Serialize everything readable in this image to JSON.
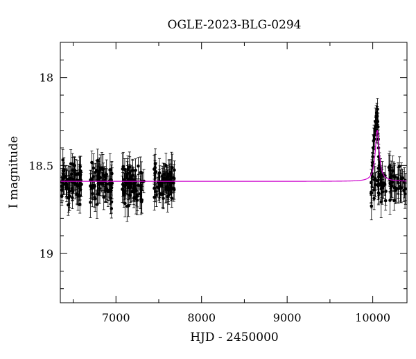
{
  "chart_data": {
    "type": "scatter",
    "title": "OGLE-2023-BLG-0294",
    "xlabel": "HJD - 2450000",
    "ylabel": "I magnitude",
    "xlim": [
      6350,
      10400
    ],
    "ylim": [
      19.28,
      17.8
    ],
    "y_inverted": true,
    "grid": false,
    "x_ticks": [
      7000,
      8000,
      9000,
      10000
    ],
    "x_tick_labels": [
      "7000",
      "8000",
      "9000",
      "10000"
    ],
    "y_ticks": [
      18,
      18.5,
      19
    ],
    "y_tick_labels": [
      "18",
      "18.5",
      "19"
    ],
    "series": [
      {
        "kind": "points_with_errorbars",
        "color": "#000000",
        "observing_seasons": [
          {
            "x_range": [
              6360,
              6600
            ],
            "mag_median": 18.6,
            "mag_spread": 0.2,
            "err": 0.07
          },
          {
            "x_range": [
              6700,
              6960
            ],
            "mag_median": 18.6,
            "mag_spread": 0.2,
            "err": 0.07
          },
          {
            "x_range": [
              7070,
              7330
            ],
            "mag_median": 18.6,
            "mag_spread": 0.2,
            "err": 0.07
          },
          {
            "x_range": [
              7440,
              7690
            ],
            "mag_median": 18.6,
            "mag_spread": 0.18,
            "err": 0.07
          },
          {
            "x_range": [
              9980,
              10390
            ],
            "mag_median": 18.6,
            "mag_spread": 0.15,
            "err": 0.07
          }
        ],
        "event_points": [
          {
            "x": 10000,
            "y": 18.45
          },
          {
            "x": 10005,
            "y": 18.4
          },
          {
            "x": 10010,
            "y": 18.36
          },
          {
            "x": 10015,
            "y": 18.33
          },
          {
            "x": 10020,
            "y": 18.35
          },
          {
            "x": 10025,
            "y": 18.3
          },
          {
            "x": 10030,
            "y": 18.25
          },
          {
            "x": 10035,
            "y": 18.28
          },
          {
            "x": 10040,
            "y": 18.22
          },
          {
            "x": 10045,
            "y": 18.3
          },
          {
            "x": 10048,
            "y": 18.2
          },
          {
            "x": 10050,
            "y": 18.27
          },
          {
            "x": 10052,
            "y": 18.22
          },
          {
            "x": 10055,
            "y": 18.18
          },
          {
            "x": 10058,
            "y": 18.25
          },
          {
            "x": 10060,
            "y": 18.32
          },
          {
            "x": 10062,
            "y": 18.28
          },
          {
            "x": 10065,
            "y": 18.35
          },
          {
            "x": 10068,
            "y": 18.4
          },
          {
            "x": 10070,
            "y": 18.45
          },
          {
            "x": 10075,
            "y": 18.5
          },
          {
            "x": 10080,
            "y": 18.48
          },
          {
            "x": 10085,
            "y": 18.55
          },
          {
            "x": 10090,
            "y": 18.52
          },
          {
            "x": 10095,
            "y": 18.6
          },
          {
            "x": 10100,
            "y": 18.58
          },
          {
            "x": 9995,
            "y": 18.5
          },
          {
            "x": 9990,
            "y": 18.55
          },
          {
            "x": 9985,
            "y": 18.73
          },
          {
            "x": 10110,
            "y": 18.65
          },
          {
            "x": 10130,
            "y": 18.6
          },
          {
            "x": 10150,
            "y": 18.7
          }
        ]
      },
      {
        "kind": "model_curve",
        "color": "#cc00cc",
        "baseline": 18.59,
        "peak_x": 10053,
        "peak_y": 18.3,
        "width_days": 28
      }
    ]
  }
}
